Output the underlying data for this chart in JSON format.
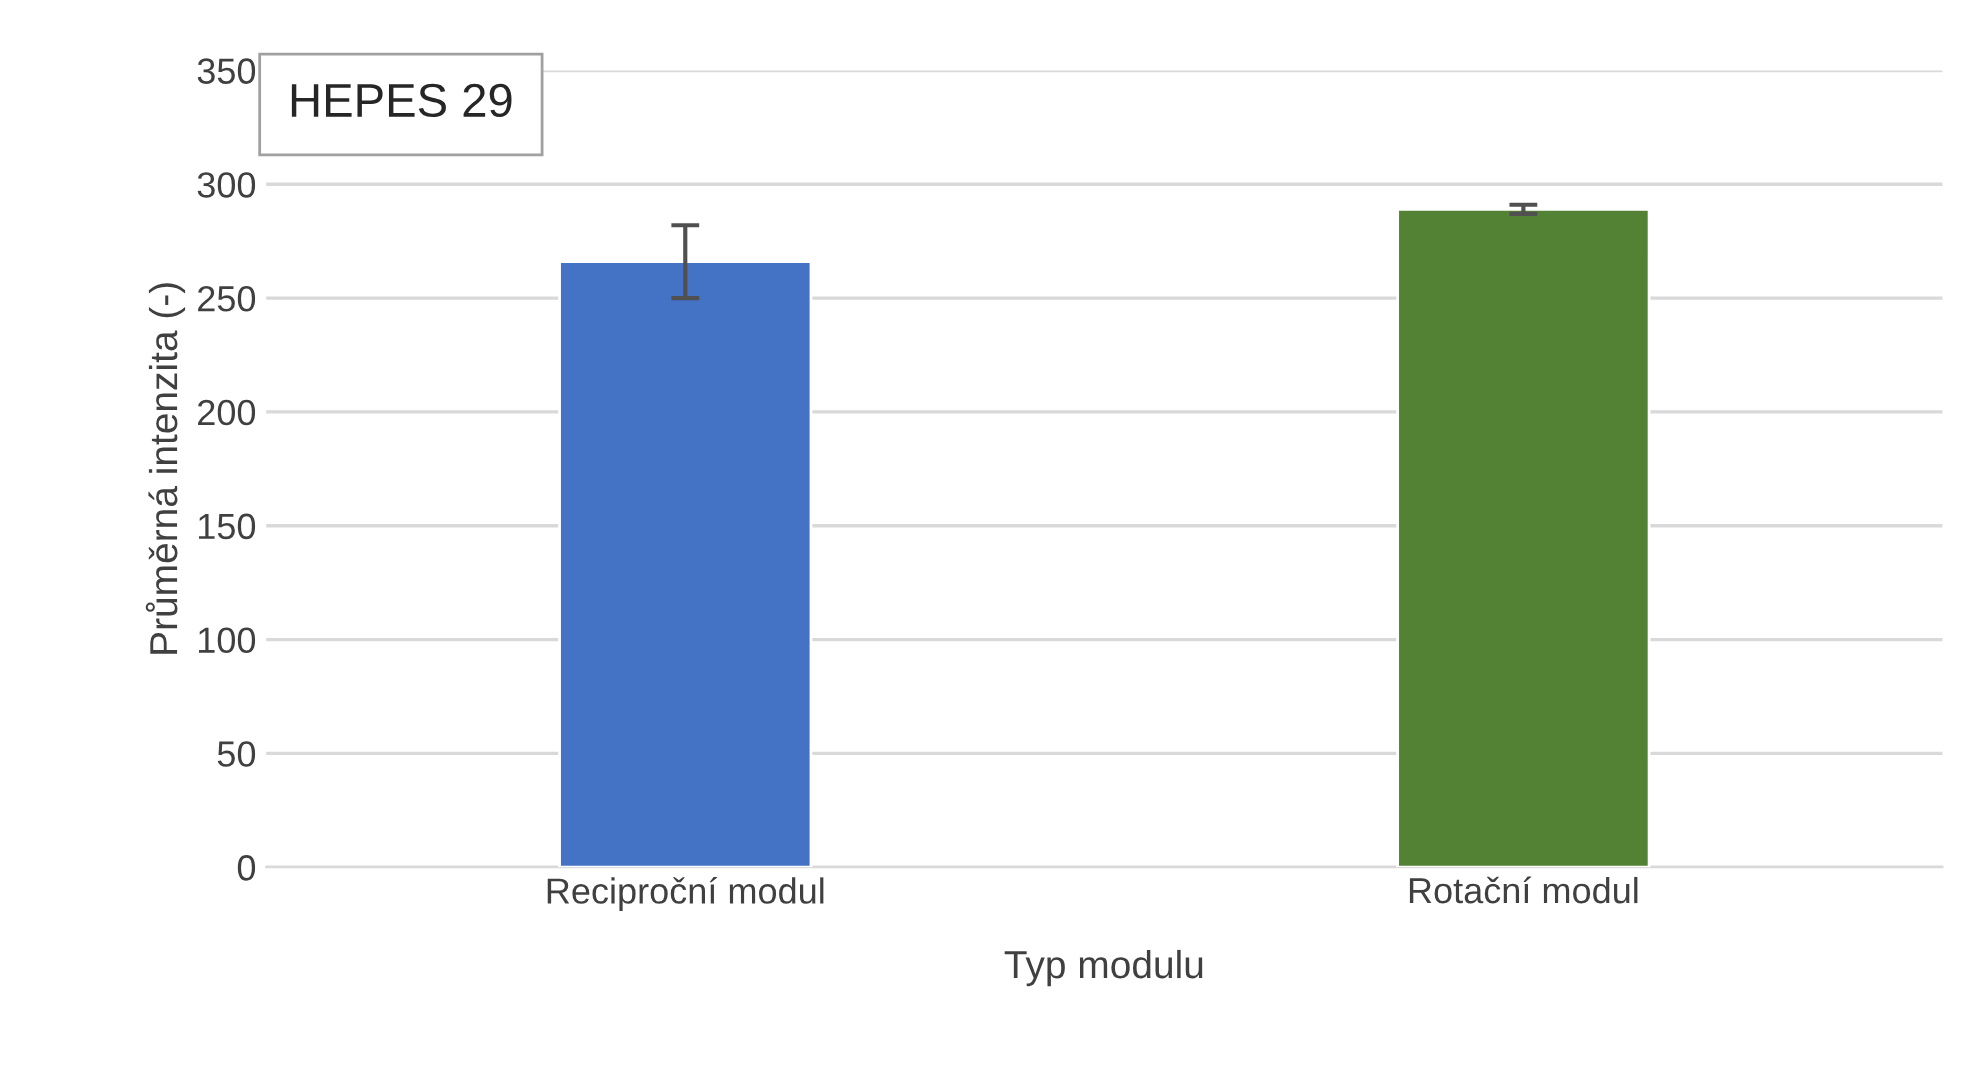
{
  "chart_data": {
    "type": "bar",
    "title": "HEPES 29",
    "xlabel": "Typ modulu",
    "ylabel": "Průměrná intenzita (-)",
    "categories": [
      "Reciproční modul",
      "Rotační modul"
    ],
    "values": [
      266,
      289
    ],
    "colors": [
      "#4472c4",
      "#548235"
    ],
    "errors": [
      16,
      2
    ],
    "ylim": [
      0,
      350
    ],
    "yticks": [
      0,
      50,
      100,
      150,
      200,
      250,
      300,
      350
    ],
    "grid": "y",
    "legend": false
  }
}
